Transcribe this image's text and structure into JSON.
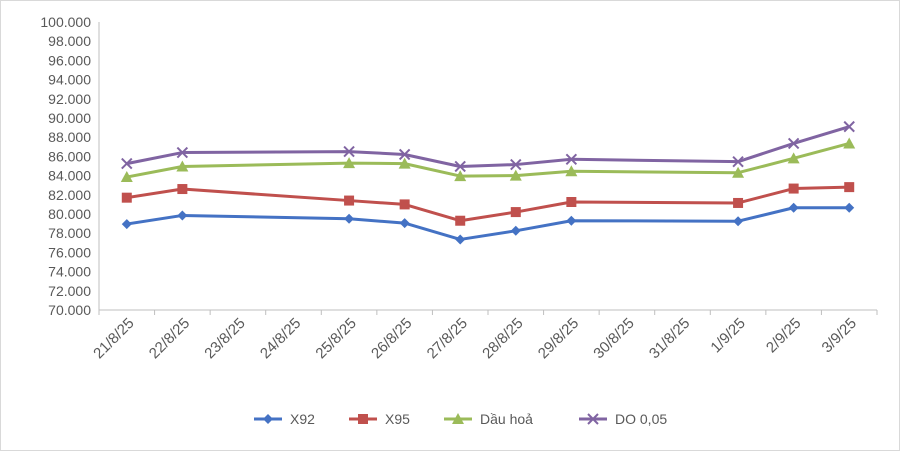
{
  "chart_data": {
    "type": "line",
    "categories": [
      "21/8/25",
      "22/8/25",
      "23/8/25",
      "24/8/25",
      "25/8/25",
      "26/8/25",
      "27/8/25",
      "28/8/25",
      "29/8/25",
      "30/8/25",
      "31/8/25",
      "1/9/25",
      "2/9/25",
      "3/9/25"
    ],
    "y_ticks": [
      "70.000",
      "72.000",
      "74.000",
      "76.000",
      "78.000",
      "80.000",
      "82.000",
      "84.000",
      "86.000",
      "88.000",
      "90.000",
      "92.000",
      "94.000",
      "96.000",
      "98.000",
      "100.000"
    ],
    "ylim": [
      70000,
      100000
    ],
    "grid": false,
    "legend_position": "bottom",
    "series": [
      {
        "name": "X92",
        "color": "#4472c4",
        "marker": "diamond",
        "values": [
          78950,
          79850,
          null,
          null,
          79500,
          79050,
          77350,
          78250,
          79300,
          null,
          null,
          79250,
          80650,
          80650
        ]
      },
      {
        "name": "X95",
        "color": "#c0504d",
        "marker": "square",
        "values": [
          81700,
          82600,
          null,
          null,
          81400,
          81000,
          79300,
          80200,
          81250,
          null,
          null,
          81150,
          82650,
          82800
        ]
      },
      {
        "name": "Dầu hoả",
        "color": "#9bbb59",
        "marker": "triangle",
        "values": [
          83850,
          84950,
          null,
          null,
          85300,
          85250,
          83950,
          84000,
          84450,
          null,
          null,
          84300,
          85800,
          87350
        ]
      },
      {
        "name": "DO 0,05",
        "color": "#8064a2",
        "marker": "x",
        "values": [
          85250,
          86400,
          null,
          null,
          86500,
          86200,
          84950,
          85150,
          85700,
          null,
          null,
          85450,
          87350,
          89100
        ]
      }
    ]
  }
}
